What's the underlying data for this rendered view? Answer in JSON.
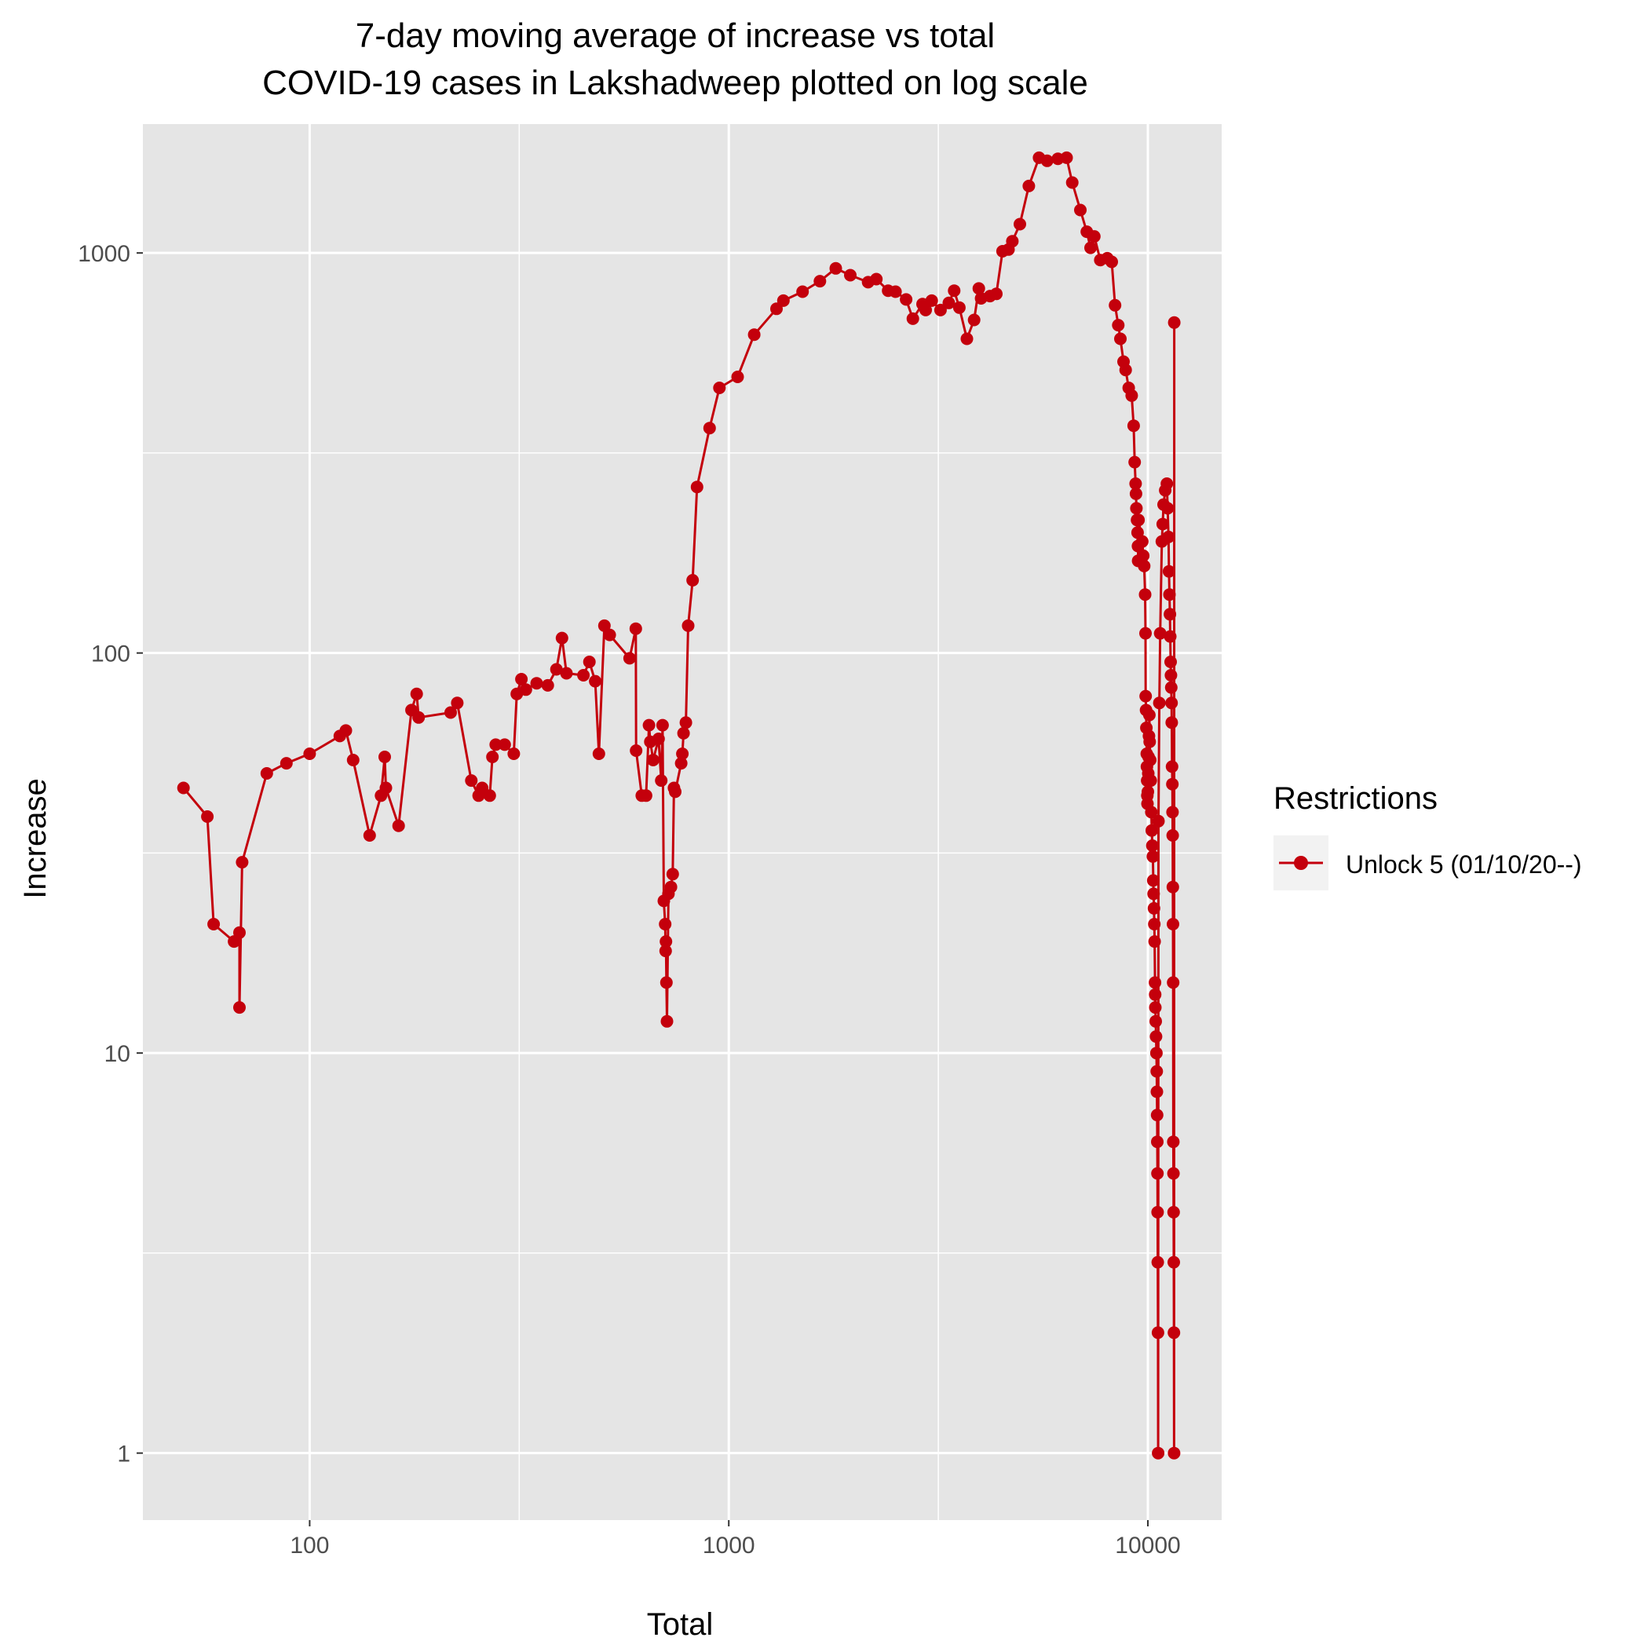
{
  "chart_data": {
    "type": "line",
    "title_lines": [
      "7-day moving average of increase vs total",
      "COVID-19 cases in Lakshadweep plotted on log scale"
    ],
    "xlabel": "Total",
    "ylabel": "Increase",
    "x_scale": "log10",
    "y_scale": "log10",
    "xlim": [
      40,
      15000
    ],
    "ylim": [
      0.68,
      2100
    ],
    "x_ticks": [
      100,
      1000,
      10000
    ],
    "x_tick_labels": [
      "100",
      "1000",
      "10000"
    ],
    "y_ticks": [
      1,
      10,
      100,
      1000
    ],
    "y_tick_labels": [
      "1",
      "10",
      "100",
      "1000"
    ],
    "grid": true,
    "legend_position": "right",
    "legend": {
      "title": "Restrictions",
      "entries": [
        "Unlock 5 (01/10/20--)"
      ]
    },
    "colors": {
      "series": "#c4000c",
      "panel": "#e5e5e5",
      "grid": "#ffffff",
      "text": "#000000",
      "tick_text": "#4d4d4d"
    },
    "series": [
      {
        "name": "Unlock 5 (01/10/20--)",
        "points": [
          [
            50,
            46
          ],
          [
            57,
            39
          ],
          [
            59,
            21
          ],
          [
            66,
            19
          ],
          [
            68,
            20
          ],
          [
            68,
            13
          ],
          [
            69,
            30
          ],
          [
            79,
            50
          ],
          [
            88,
            53
          ],
          [
            100,
            56
          ],
          [
            118,
            62
          ],
          [
            122,
            64
          ],
          [
            127,
            54
          ],
          [
            139,
            35
          ],
          [
            148,
            44
          ],
          [
            151,
            55
          ],
          [
            152,
            46
          ],
          [
            163,
            37
          ],
          [
            175,
            72
          ],
          [
            180,
            79
          ],
          [
            182,
            69
          ],
          [
            217,
            71
          ],
          [
            225,
            75
          ],
          [
            243,
            48
          ],
          [
            253,
            44
          ],
          [
            258,
            46
          ],
          [
            269,
            44
          ],
          [
            273,
            55
          ],
          [
            278,
            59
          ],
          [
            292,
            59
          ],
          [
            307,
            56
          ],
          [
            312,
            79
          ],
          [
            320,
            86
          ],
          [
            328,
            81
          ],
          [
            348,
            84
          ],
          [
            370,
            83
          ],
          [
            388,
            91
          ],
          [
            400,
            109
          ],
          [
            410,
            89
          ],
          [
            450,
            88
          ],
          [
            465,
            95
          ],
          [
            480,
            85
          ],
          [
            490,
            56
          ],
          [
            505,
            117
          ],
          [
            520,
            111
          ],
          [
            580,
            97
          ],
          [
            600,
            115
          ],
          [
            601,
            57
          ],
          [
            620,
            44
          ],
          [
            635,
            44
          ],
          [
            645,
            66
          ],
          [
            650,
            60
          ],
          [
            660,
            54
          ],
          [
            680,
            61
          ],
          [
            690,
            48
          ],
          [
            695,
            66
          ],
          [
            700,
            24
          ],
          [
            705,
            21
          ],
          [
            707,
            18
          ],
          [
            708,
            19
          ],
          [
            710,
            15
          ],
          [
            712,
            12
          ],
          [
            718,
            25
          ],
          [
            728,
            26
          ],
          [
            735,
            28
          ],
          [
            740,
            46
          ],
          [
            745,
            45
          ],
          [
            770,
            53
          ],
          [
            775,
            56
          ],
          [
            780,
            63
          ],
          [
            790,
            67
          ],
          [
            800,
            117
          ],
          [
            820,
            152
          ],
          [
            840,
            260
          ],
          [
            900,
            365
          ],
          [
            950,
            460
          ],
          [
            1050,
            490
          ],
          [
            1150,
            625
          ],
          [
            1300,
            725
          ],
          [
            1350,
            760
          ],
          [
            1500,
            800
          ],
          [
            1650,
            850
          ],
          [
            1800,
            915
          ],
          [
            1950,
            880
          ],
          [
            2150,
            845
          ],
          [
            2250,
            860
          ],
          [
            2400,
            805
          ],
          [
            2500,
            800
          ],
          [
            2650,
            765
          ],
          [
            2750,
            685
          ],
          [
            2900,
            745
          ],
          [
            2950,
            720
          ],
          [
            3050,
            760
          ],
          [
            3200,
            720
          ],
          [
            3350,
            750
          ],
          [
            3450,
            805
          ],
          [
            3550,
            730
          ],
          [
            3700,
            610
          ],
          [
            3850,
            680
          ],
          [
            3950,
            815
          ],
          [
            4000,
            770
          ],
          [
            4200,
            780
          ],
          [
            4350,
            790
          ],
          [
            4500,
            1010
          ],
          [
            4650,
            1020
          ],
          [
            4750,
            1070
          ],
          [
            4950,
            1180
          ],
          [
            5200,
            1470
          ],
          [
            5500,
            1730
          ],
          [
            5750,
            1700
          ],
          [
            6100,
            1720
          ],
          [
            6400,
            1730
          ],
          [
            6600,
            1500
          ],
          [
            6900,
            1280
          ],
          [
            7150,
            1130
          ],
          [
            7300,
            1030
          ],
          [
            7450,
            1100
          ],
          [
            7700,
            960
          ],
          [
            8000,
            970
          ],
          [
            8200,
            950
          ],
          [
            8350,
            740
          ],
          [
            8500,
            660
          ],
          [
            8600,
            610
          ],
          [
            8750,
            535
          ],
          [
            8850,
            510
          ],
          [
            9000,
            460
          ],
          [
            9150,
            440
          ],
          [
            9250,
            370
          ],
          [
            9300,
            300
          ],
          [
            9350,
            265
          ],
          [
            9370,
            250
          ],
          [
            9390,
            230
          ],
          [
            9420,
            215
          ],
          [
            9450,
            200
          ],
          [
            9470,
            185
          ],
          [
            9480,
            170
          ],
          [
            9500,
            215
          ],
          [
            9700,
            190
          ],
          [
            9750,
            175
          ],
          [
            9800,
            165
          ],
          [
            9850,
            140
          ],
          [
            9870,
            112
          ],
          [
            9880,
            78
          ],
          [
            9900,
            72
          ],
          [
            9920,
            65
          ],
          [
            9940,
            56
          ],
          [
            9950,
            52
          ],
          [
            9960,
            48
          ],
          [
            9970,
            44
          ],
          [
            9980,
            42
          ],
          [
            10000,
            45
          ],
          [
            10020,
            50
          ],
          [
            10040,
            55
          ],
          [
            10060,
            62
          ],
          [
            10080,
            70
          ],
          [
            10100,
            60
          ],
          [
            10130,
            54
          ],
          [
            10160,
            48
          ],
          [
            10190,
            40
          ],
          [
            10220,
            36
          ],
          [
            10250,
            33
          ],
          [
            10280,
            31
          ],
          [
            10300,
            27
          ],
          [
            10320,
            25
          ],
          [
            10340,
            23
          ],
          [
            10360,
            21
          ],
          [
            10380,
            19
          ],
          [
            10400,
            15
          ],
          [
            10410,
            14
          ],
          [
            10420,
            13
          ],
          [
            10440,
            12
          ],
          [
            10460,
            11
          ],
          [
            10480,
            10
          ],
          [
            10500,
            9
          ],
          [
            10510,
            8
          ],
          [
            10520,
            7
          ],
          [
            10530,
            6
          ],
          [
            10540,
            5
          ],
          [
            10550,
            4
          ],
          [
            10560,
            3
          ],
          [
            10570,
            2
          ],
          [
            10580,
            1
          ],
          [
            10600,
            38
          ],
          [
            10650,
            75
          ],
          [
            10700,
            112
          ],
          [
            10800,
            190
          ],
          [
            10850,
            210
          ],
          [
            10900,
            235
          ],
          [
            11000,
            255
          ],
          [
            11100,
            265
          ],
          [
            11150,
            230
          ],
          [
            11200,
            195
          ],
          [
            11230,
            160
          ],
          [
            11260,
            140
          ],
          [
            11290,
            125
          ],
          [
            11310,
            110
          ],
          [
            11330,
            95
          ],
          [
            11350,
            88
          ],
          [
            11370,
            82
          ],
          [
            11390,
            75
          ],
          [
            11400,
            67
          ],
          [
            11420,
            52
          ],
          [
            11440,
            47
          ],
          [
            11450,
            40
          ],
          [
            11460,
            35
          ],
          [
            11470,
            26
          ],
          [
            11480,
            21
          ],
          [
            11490,
            15
          ],
          [
            11500,
            6
          ],
          [
            11510,
            5
          ],
          [
            11520,
            4
          ],
          [
            11530,
            3
          ],
          [
            11540,
            2
          ],
          [
            11550,
            1
          ],
          [
            11560,
            670
          ]
        ]
      }
    ]
  }
}
